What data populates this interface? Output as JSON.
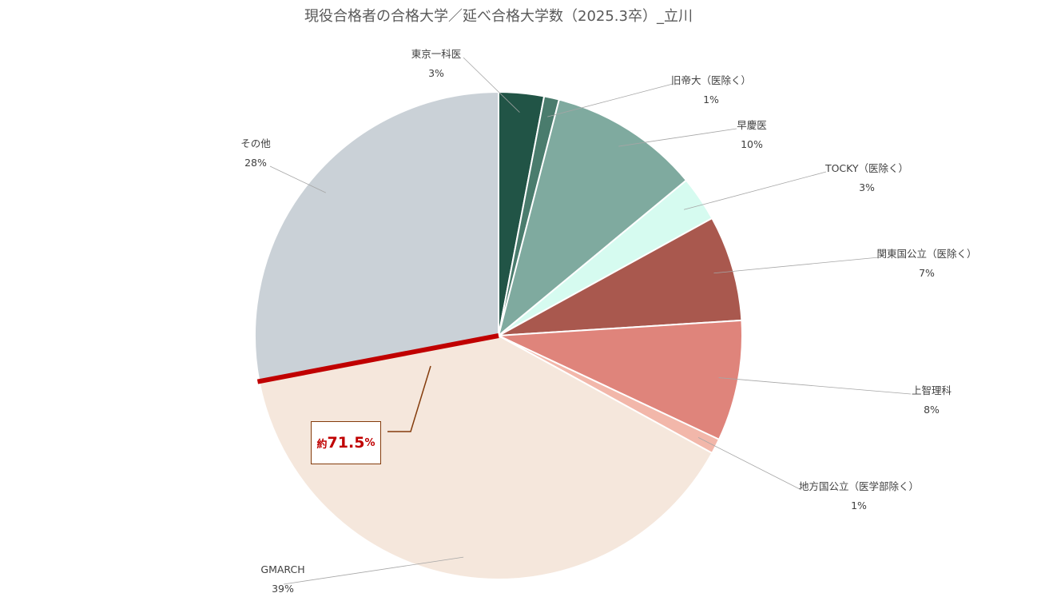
{
  "chart_data": {
    "type": "pie",
    "title": "現役合格者の合格大学／延べ合格大学数（2025.3卒）_立川",
    "slices": [
      {
        "label": "東京一科医",
        "value": 3,
        "pct_label": "3%",
        "color": "#215446"
      },
      {
        "label": "旧帝大（医除く）",
        "value": 1,
        "pct_label": "1%",
        "color": "#4a7c6d"
      },
      {
        "label": "早慶医",
        "value": 10,
        "pct_label": "10%",
        "color": "#7faa9f"
      },
      {
        "label": "TOCKY（医除く）",
        "value": 3,
        "pct_label": "3%",
        "color": "#d6fbf0"
      },
      {
        "label": "関東国公立（医除く）",
        "value": 7,
        "pct_label": "7%",
        "color": "#a9584e"
      },
      {
        "label": "上智理科",
        "value": 8,
        "pct_label": "8%",
        "color": "#df847b"
      },
      {
        "label": "地方国公立（医学部除く）",
        "value": 1,
        "pct_label": "1%",
        "color": "#f2b7aa"
      },
      {
        "label": "GMARCH",
        "value": 39,
        "pct_label": "39%",
        "color": "#f5e7dc"
      },
      {
        "label": "その他",
        "value": 28,
        "pct_label": "28%",
        "color": "#cad1d7"
      }
    ],
    "annotation": {
      "prefix": "約",
      "value": "71.5",
      "unit": "%"
    },
    "accent_color": "#c00000",
    "legend": "none"
  }
}
